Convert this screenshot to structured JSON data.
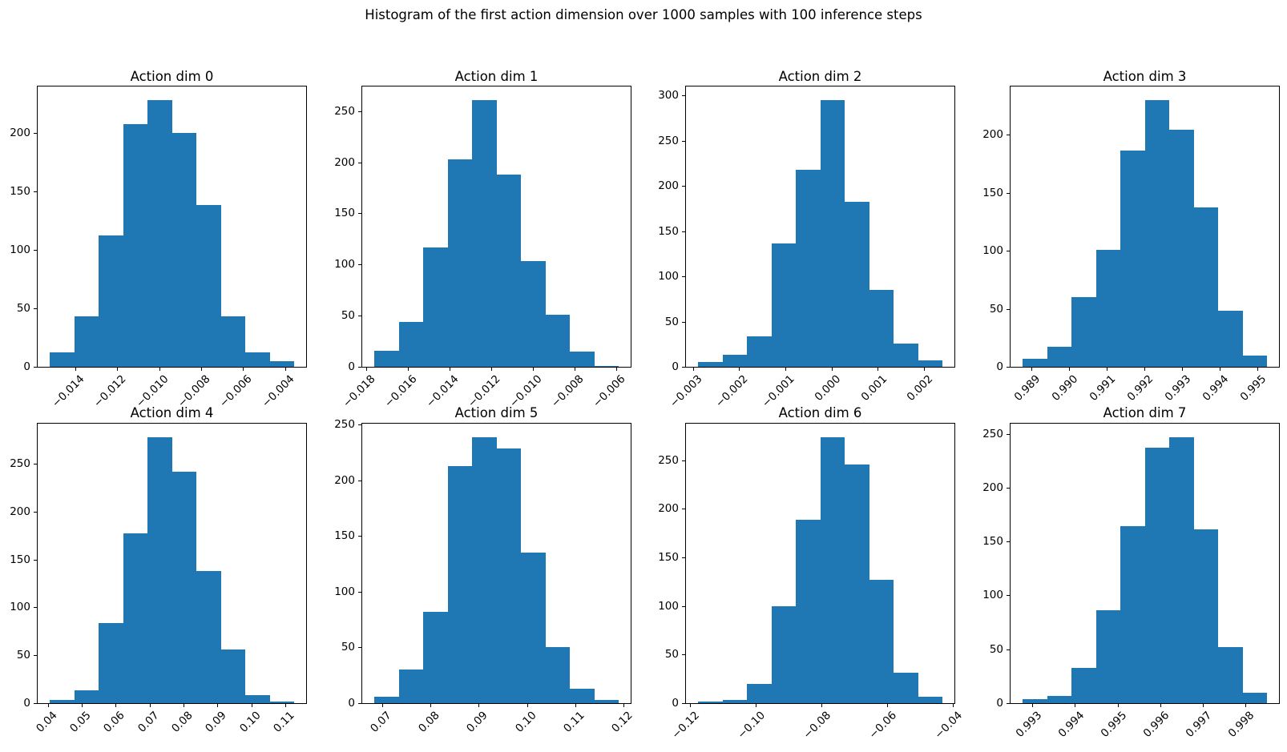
{
  "figure": {
    "suptitle": "Histogram of the first action dimension over 1000 samples with 100 inference steps",
    "background_color": "#ffffff",
    "bar_color": "#1f77b4",
    "axis_color": "#000000",
    "grid": false,
    "legend": false,
    "layout": "2 rows x 4 columns of subplots"
  },
  "chart_data": [
    {
      "type": "bar",
      "subtype": "histogram",
      "title": "Action dim 0",
      "bin_start": -0.01521,
      "bin_end": -0.00358,
      "n_bins": 10,
      "values": [
        12,
        43,
        112,
        207,
        228,
        200,
        138,
        43,
        12,
        5
      ],
      "xticks": {
        "values": [
          -0.014,
          -0.012,
          -0.01,
          -0.008,
          -0.006,
          -0.004
        ],
        "labels": [
          "−0.014",
          "−0.012",
          "−0.010",
          "−0.008",
          "−0.006",
          "−0.004"
        ]
      },
      "yticks": {
        "values": [
          0,
          50,
          100,
          150,
          200
        ],
        "labels": [
          "0",
          "50",
          "100",
          "150",
          "200"
        ]
      },
      "ylim": [
        0,
        239.4
      ]
    },
    {
      "type": "bar",
      "subtype": "histogram",
      "title": "Action dim 1",
      "bin_start": -0.01762,
      "bin_end": -0.00588,
      "n_bins": 10,
      "values": [
        16,
        44,
        117,
        203,
        261,
        188,
        103,
        51,
        15,
        1
      ],
      "xticks": {
        "values": [
          -0.018,
          -0.016,
          -0.014,
          -0.012,
          -0.01,
          -0.008,
          -0.006
        ],
        "labels": [
          "−0.018",
          "−0.016",
          "−0.014",
          "−0.012",
          "−0.010",
          "−0.008",
          "−0.006"
        ]
      },
      "yticks": {
        "values": [
          0,
          50,
          100,
          150,
          200,
          250
        ],
        "labels": [
          "0",
          "50",
          "100",
          "150",
          "200",
          "250"
        ]
      },
      "ylim": [
        0,
        274.05
      ]
    },
    {
      "type": "bar",
      "subtype": "histogram",
      "title": "Action dim 2",
      "bin_start": -0.00289,
      "bin_end": 0.0024,
      "n_bins": 10,
      "values": [
        5,
        13,
        34,
        136,
        218,
        295,
        182,
        85,
        26,
        7
      ],
      "xticks": {
        "values": [
          -0.003,
          -0.002,
          -0.001,
          0.0,
          0.001,
          0.002
        ],
        "labels": [
          "−0.003",
          "−0.002",
          "−0.001",
          "0.000",
          "0.001",
          "0.002"
        ]
      },
      "yticks": {
        "values": [
          0,
          50,
          100,
          150,
          200,
          250,
          300
        ],
        "labels": [
          "0",
          "50",
          "100",
          "150",
          "200",
          "250",
          "300"
        ]
      },
      "ylim": [
        0,
        309.75
      ]
    },
    {
      "type": "bar",
      "subtype": "histogram",
      "title": "Action dim 3",
      "bin_start": 0.98877,
      "bin_end": 0.99525,
      "n_bins": 10,
      "values": [
        7,
        17,
        60,
        101,
        186,
        230,
        204,
        137,
        48,
        10
      ],
      "xticks": {
        "values": [
          0.989,
          0.99,
          0.991,
          0.992,
          0.993,
          0.994,
          0.995
        ],
        "labels": [
          "0.989",
          "0.990",
          "0.991",
          "0.992",
          "0.993",
          "0.994",
          "0.995"
        ]
      },
      "yticks": {
        "values": [
          0,
          50,
          100,
          150,
          200
        ],
        "labels": [
          "0",
          "50",
          "100",
          "150",
          "200"
        ]
      },
      "ylim": [
        0,
        241.5
      ]
    },
    {
      "type": "bar",
      "subtype": "histogram",
      "title": "Action dim 4",
      "bin_start": 0.0406,
      "bin_end": 0.1125,
      "n_bins": 10,
      "values": [
        3,
        13,
        84,
        177,
        278,
        242,
        138,
        56,
        8,
        2
      ],
      "xticks": {
        "values": [
          0.04,
          0.05,
          0.06,
          0.07,
          0.08,
          0.09,
          0.1,
          0.11
        ],
        "labels": [
          "0.04",
          "0.05",
          "0.06",
          "0.07",
          "0.08",
          "0.09",
          "0.10",
          "0.11"
        ]
      },
      "yticks": {
        "values": [
          0,
          50,
          100,
          150,
          200,
          250
        ],
        "labels": [
          "0",
          "50",
          "100",
          "150",
          "200",
          "250"
        ]
      },
      "ylim": [
        0,
        291.9
      ]
    },
    {
      "type": "bar",
      "subtype": "histogram",
      "title": "Action dim 5",
      "bin_start": 0.0684,
      "bin_end": 0.1189,
      "n_bins": 10,
      "values": [
        6,
        30,
        82,
        213,
        239,
        229,
        135,
        50,
        13,
        3
      ],
      "xticks": {
        "values": [
          0.07,
          0.08,
          0.09,
          0.1,
          0.11,
          0.12
        ],
        "labels": [
          "0.07",
          "0.08",
          "0.09",
          "0.10",
          "0.11",
          "0.12"
        ]
      },
      "yticks": {
        "values": [
          0,
          50,
          100,
          150,
          200,
          250
        ],
        "labels": [
          "0",
          "50",
          "100",
          "150",
          "200",
          "250"
        ]
      },
      "ylim": [
        0,
        250.95
      ]
    },
    {
      "type": "bar",
      "subtype": "histogram",
      "title": "Action dim 6",
      "bin_start": -0.1175,
      "bin_end": -0.0433,
      "n_bins": 10,
      "values": [
        2,
        3,
        20,
        100,
        189,
        274,
        246,
        127,
        31,
        7
      ],
      "xticks": {
        "values": [
          -0.12,
          -0.1,
          -0.08,
          -0.06,
          -0.04
        ],
        "labels": [
          "−0.12",
          "−0.10",
          "−0.08",
          "−0.06",
          "−0.04"
        ]
      },
      "yticks": {
        "values": [
          0,
          50,
          100,
          150,
          200,
          250
        ],
        "labels": [
          "0",
          "50",
          "100",
          "150",
          "200",
          "250"
        ]
      },
      "ylim": [
        0,
        287.7
      ]
    },
    {
      "type": "bar",
      "subtype": "histogram",
      "title": "Action dim 7",
      "bin_start": 0.99277,
      "bin_end": 0.99851,
      "n_bins": 10,
      "values": [
        4,
        7,
        33,
        86,
        164,
        237,
        247,
        161,
        52,
        10
      ],
      "xticks": {
        "values": [
          0.993,
          0.994,
          0.995,
          0.996,
          0.997,
          0.998
        ],
        "labels": [
          "0.993",
          "0.994",
          "0.995",
          "0.996",
          "0.997",
          "0.998"
        ]
      },
      "yticks": {
        "values": [
          0,
          50,
          100,
          150,
          200,
          250
        ],
        "labels": [
          "0",
          "50",
          "100",
          "150",
          "200",
          "250"
        ]
      },
      "ylim": [
        0,
        259.35
      ]
    }
  ]
}
